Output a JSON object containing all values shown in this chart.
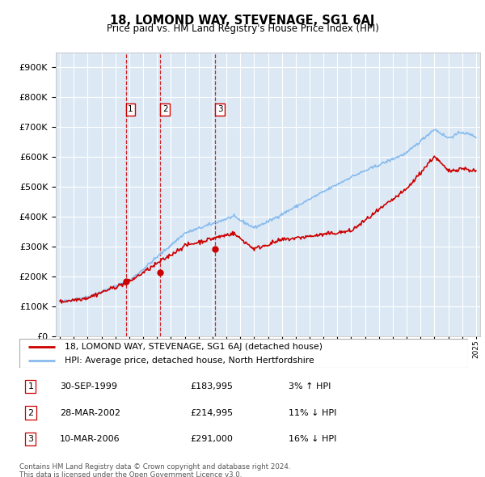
{
  "title": "18, LOMOND WAY, STEVENAGE, SG1 6AJ",
  "subtitle": "Price paid vs. HM Land Registry's House Price Index (HPI)",
  "xlim": [
    1994.7,
    2025.3
  ],
  "ylim": [
    0,
    950000
  ],
  "yticks": [
    0,
    100000,
    200000,
    300000,
    400000,
    500000,
    600000,
    700000,
    800000,
    900000
  ],
  "background_color": "#dce9f5",
  "red_color": "#cc0000",
  "blue_color": "#88bbee",
  "grid_color": "#ffffff",
  "sales": [
    {
      "num": 1,
      "year": 1999.75,
      "price": 183995,
      "label": "30-SEP-1999",
      "price_str": "£183,995",
      "pct": "3%",
      "dir": "↑"
    },
    {
      "num": 2,
      "year": 2002.23,
      "price": 214995,
      "label": "28-MAR-2002",
      "price_str": "£214,995",
      "pct": "11%",
      "dir": "↓"
    },
    {
      "num": 3,
      "year": 2006.19,
      "price": 291000,
      "label": "10-MAR-2006",
      "price_str": "£291,000",
      "pct": "16%",
      "dir": "↓"
    }
  ],
  "legend_line1": "18, LOMOND WAY, STEVENAGE, SG1 6AJ (detached house)",
  "legend_line2": "HPI: Average price, detached house, North Hertfordshire",
  "footer1": "Contains HM Land Registry data © Crown copyright and database right 2024.",
  "footer2": "This data is licensed under the Open Government Licence v3.0."
}
